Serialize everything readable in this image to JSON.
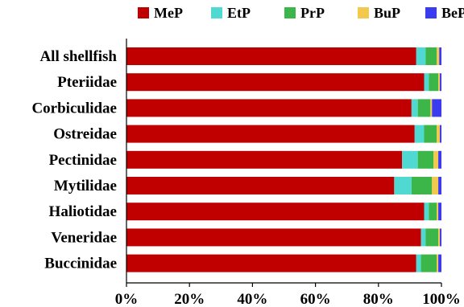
{
  "chart_data": {
    "type": "bar",
    "orientation": "horizontal",
    "stacked": true,
    "categories": [
      "All shellfish",
      "Pteriidae",
      "Corbiculidae",
      "Ostreidae",
      "Pectinidae",
      "Mytilidae",
      "Haliotidae",
      "Veneridae",
      "Buccinidae"
    ],
    "series": [
      {
        "name": "MeP",
        "color": "#c00000",
        "values": [
          92.0,
          94.5,
          90.5,
          91.5,
          87.5,
          85.0,
          94.5,
          93.5,
          92.0
        ]
      },
      {
        "name": "EtP",
        "color": "#4fd9d2",
        "values": [
          3.0,
          1.5,
          2.0,
          3.0,
          5.0,
          5.5,
          1.5,
          1.5,
          1.5
        ]
      },
      {
        "name": "PrP",
        "color": "#3cb549",
        "values": [
          3.5,
          3.0,
          4.0,
          4.0,
          5.0,
          6.5,
          2.5,
          4.0,
          5.0
        ]
      },
      {
        "name": "BuP",
        "color": "#f2c94c",
        "values": [
          0.8,
          0.5,
          0.5,
          1.0,
          1.5,
          2.0,
          0.5,
          0.5,
          0.5
        ]
      },
      {
        "name": "BeP",
        "color": "#3b3bf0",
        "values": [
          0.7,
          0.5,
          3.0,
          0.5,
          1.0,
          1.0,
          1.0,
          0.5,
          1.0
        ]
      }
    ],
    "xlim": [
      0,
      100
    ],
    "xticks": [
      "0%",
      "20%",
      "40%",
      "60%",
      "80%",
      "100%"
    ],
    "legend": "top",
    "grid": false
  }
}
